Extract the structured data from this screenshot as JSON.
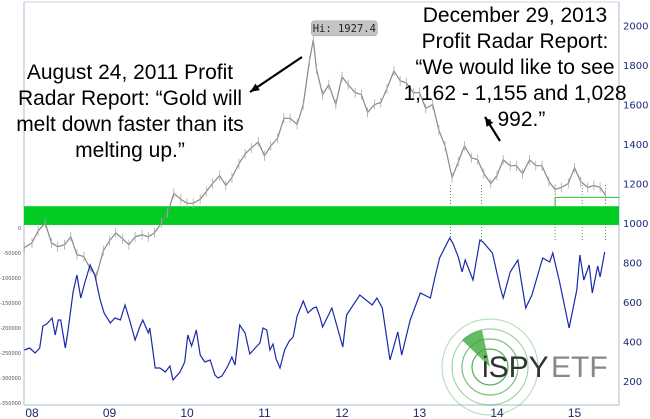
{
  "chart_data": [
    {
      "type": "line",
      "x_ticks": [
        "08",
        "09",
        "10",
        "11",
        "12",
        "13",
        "14",
        "15"
      ],
      "y_right_ticks": [
        200,
        400,
        600,
        800,
        1000,
        1200,
        1400,
        1600,
        1800,
        2000
      ],
      "y_right_range": [
        140,
        2060
      ],
      "y_left_ticks": [
        0,
        -50000,
        -100000,
        -150000,
        -200000,
        -250000,
        -300000,
        -350000
      ],
      "y_left_range": [
        -362000,
        114000
      ],
      "grid": false,
      "highlight_band": {
        "from": 990,
        "to": 1085,
        "axis": "right",
        "color": "#00cc22"
      },
      "target_box_level": 1130,
      "marker_dates": [
        2013.4,
        2013.8,
        2014.75,
        2015.1,
        2015.4
      ],
      "series": [
        {
          "axis": "right",
          "color": "#888888",
          "x": [
            2007.9,
            2008.0,
            2008.08,
            2008.17,
            2008.25,
            2008.33,
            2008.42,
            2008.5,
            2008.58,
            2008.67,
            2008.75,
            2008.83,
            2008.92,
            2009.0,
            2009.08,
            2009.17,
            2009.25,
            2009.33,
            2009.42,
            2009.5,
            2009.58,
            2009.67,
            2009.75,
            2009.83,
            2009.92,
            2010.0,
            2010.08,
            2010.17,
            2010.25,
            2010.33,
            2010.42,
            2010.5,
            2010.58,
            2010.67,
            2010.75,
            2010.83,
            2010.92,
            2011.0,
            2011.08,
            2011.17,
            2011.25,
            2011.33,
            2011.42,
            2011.5,
            2011.58,
            2011.63,
            2011.67,
            2011.75,
            2011.83,
            2011.92,
            2012.0,
            2012.08,
            2012.17,
            2012.25,
            2012.33,
            2012.42,
            2012.5,
            2012.58,
            2012.67,
            2012.75,
            2012.83,
            2012.92,
            2013.0,
            2013.08,
            2013.17,
            2013.25,
            2013.33,
            2013.42,
            2013.5,
            2013.58,
            2013.67,
            2013.75,
            2013.83,
            2013.92,
            2014.0,
            2014.08,
            2014.17,
            2014.25,
            2014.33,
            2014.42,
            2014.5,
            2014.58,
            2014.67,
            2014.75,
            2014.83,
            2014.92,
            2015.0,
            2015.08,
            2015.17,
            2015.25,
            2015.33,
            2015.4
          ],
          "values": [
            875,
            900,
            960,
            1000,
            900,
            880,
            890,
            930,
            840,
            830,
            770,
            730,
            860,
            910,
            950,
            920,
            890,
            930,
            940,
            930,
            950,
            1000,
            1050,
            1150,
            1120,
            1100,
            1100,
            1120,
            1160,
            1200,
            1240,
            1190,
            1230,
            1300,
            1350,
            1380,
            1410,
            1340,
            1390,
            1430,
            1530,
            1530,
            1500,
            1600,
            1820,
            1927.4,
            1780,
            1650,
            1700,
            1600,
            1740,
            1700,
            1660,
            1650,
            1560,
            1600,
            1610,
            1680,
            1770,
            1720,
            1710,
            1660,
            1660,
            1580,
            1600,
            1470,
            1390,
            1230,
            1310,
            1390,
            1330,
            1320,
            1250,
            1200,
            1240,
            1320,
            1290,
            1290,
            1250,
            1320,
            1290,
            1290,
            1210,
            1170,
            1180,
            1200,
            1280,
            1210,
            1180,
            1190,
            1180,
            1140
          ]
        },
        {
          "axis": "left",
          "color": "#1a2aa8",
          "x": [
            2007.9,
            2007.97,
            2008.04,
            2008.1,
            2008.14,
            2008.19,
            2008.26,
            2008.3,
            2008.34,
            2008.37,
            2008.43,
            2008.46,
            2008.53,
            2008.58,
            2008.63,
            2008.68,
            2008.75,
            2008.81,
            2008.88,
            2008.93,
            2009.01,
            2009.07,
            2009.14,
            2009.2,
            2009.26,
            2009.33,
            2009.39,
            2009.43,
            2009.5,
            2009.52,
            2009.59,
            2009.65,
            2009.72,
            2009.78,
            2009.82,
            2009.91,
            2009.97,
            2010.01,
            2010.06,
            2010.12,
            2010.17,
            2010.23,
            2010.3,
            2010.36,
            2010.4,
            2010.45,
            2010.52,
            2010.58,
            2010.62,
            2010.68,
            2010.75,
            2010.81,
            2010.88,
            2010.94,
            2010.98,
            2011.03,
            2011.07,
            2011.11,
            2011.15,
            2011.2,
            2011.26,
            2011.32,
            2011.37,
            2011.42,
            2011.5,
            2011.56,
            2011.63,
            2011.67,
            2011.72,
            2011.75,
            2011.87,
            2012.01,
            2012.06,
            2012.23,
            2012.39,
            2012.45,
            2012.52,
            2012.62,
            2012.72,
            2012.77,
            2012.88,
            2013.01,
            2013.14,
            2013.2,
            2013.26,
            2013.39,
            2013.43,
            2013.5,
            2013.55,
            2013.59,
            2013.69,
            2013.78,
            2013.82,
            2013.94,
            2014.04,
            2014.08,
            2014.17,
            2014.27,
            2014.37,
            2014.45,
            2014.59,
            2014.68,
            2014.72,
            2014.81,
            2014.93,
            2015.03,
            2015.07,
            2015.12,
            2015.19,
            2015.23,
            2015.3,
            2015.33,
            2015.39
          ],
          "values": [
            -244000,
            -240000,
            -250000,
            -240000,
            -196000,
            -192000,
            -180000,
            -214000,
            -184000,
            -184000,
            -240000,
            -210000,
            -128000,
            -94000,
            -140000,
            -110000,
            -74000,
            -94000,
            -144000,
            -170000,
            -190000,
            -180000,
            -184000,
            -154000,
            -184000,
            -224000,
            -198000,
            -184000,
            -210000,
            -200000,
            -280000,
            -280000,
            -288000,
            -276000,
            -304000,
            -288000,
            -268000,
            -214000,
            -236000,
            -204000,
            -254000,
            -268000,
            -264000,
            -294000,
            -300000,
            -296000,
            -278000,
            -258000,
            -274000,
            -194000,
            -210000,
            -252000,
            -240000,
            -230000,
            -200000,
            -204000,
            -244000,
            -232000,
            -262000,
            -280000,
            -244000,
            -226000,
            -218000,
            -176000,
            -146000,
            -170000,
            -160000,
            -158000,
            -180000,
            -198000,
            -160000,
            -238000,
            -174000,
            -134000,
            -154000,
            -140000,
            -160000,
            -264000,
            -208000,
            -254000,
            -184000,
            -130000,
            -140000,
            -98000,
            -60000,
            -20000,
            -30000,
            -58000,
            -88000,
            -64000,
            -104000,
            -24000,
            -28000,
            -50000,
            -118000,
            -140000,
            -88000,
            -64000,
            -160000,
            -134000,
            -60000,
            -68000,
            -50000,
            -110000,
            -200000,
            -124000,
            -54000,
            -104000,
            -74000,
            -130000,
            -76000,
            -98000,
            -48000
          ]
        }
      ],
      "annotations": {
        "high_label": "Hi: 1927.4",
        "left_note": [
          "August 24, 2011 Profit",
          "Radar Report: “Gold will",
          "melt down faster than its",
          "melting up.”"
        ],
        "right_note": [
          "December 29, 2013",
          "Profit Radar Report:",
          "“We would like to see",
          "1,162 - 1,155 and 1,028",
          "- 992.”"
        ]
      }
    }
  ],
  "logo": {
    "text_a": "iSPY",
    "text_b": "ETF",
    "colors": {
      "green": "#3daa3d",
      "dark": "#333333",
      "gray": "#888888"
    }
  }
}
